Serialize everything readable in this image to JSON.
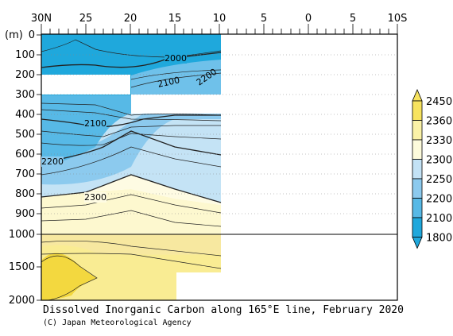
{
  "chart_data": {
    "type": "heatmap",
    "title": "Dissolved Inorganic Carbon along 165°E line, February 2020",
    "credit": "(C) Japan Meteorological Agency",
    "y_unit": "(m)",
    "x_ticks": [
      "30N",
      "25",
      "20",
      "15",
      "10",
      "5",
      "0",
      "5",
      "10S"
    ],
    "y_ticks_upper": [
      "0",
      "100",
      "200",
      "300",
      "400",
      "500",
      "600",
      "700",
      "800",
      "900",
      "1000"
    ],
    "y_ticks_lower": [
      "1500",
      "2000"
    ],
    "contour_labels": [
      "2000",
      "2100",
      "2200",
      "2100",
      "2200",
      "2300"
    ],
    "colorbar": {
      "levels": [
        "1800",
        "2100",
        "2200",
        "2250",
        "2300",
        "2330",
        "2360",
        "2450"
      ],
      "colors": [
        "#1fa8dc",
        "#57b9e6",
        "#8ccaee",
        "#c3e2f5",
        "#fdfbdc",
        "#fbf2a7",
        "#f7e35f"
      ]
    },
    "grid": true
  }
}
